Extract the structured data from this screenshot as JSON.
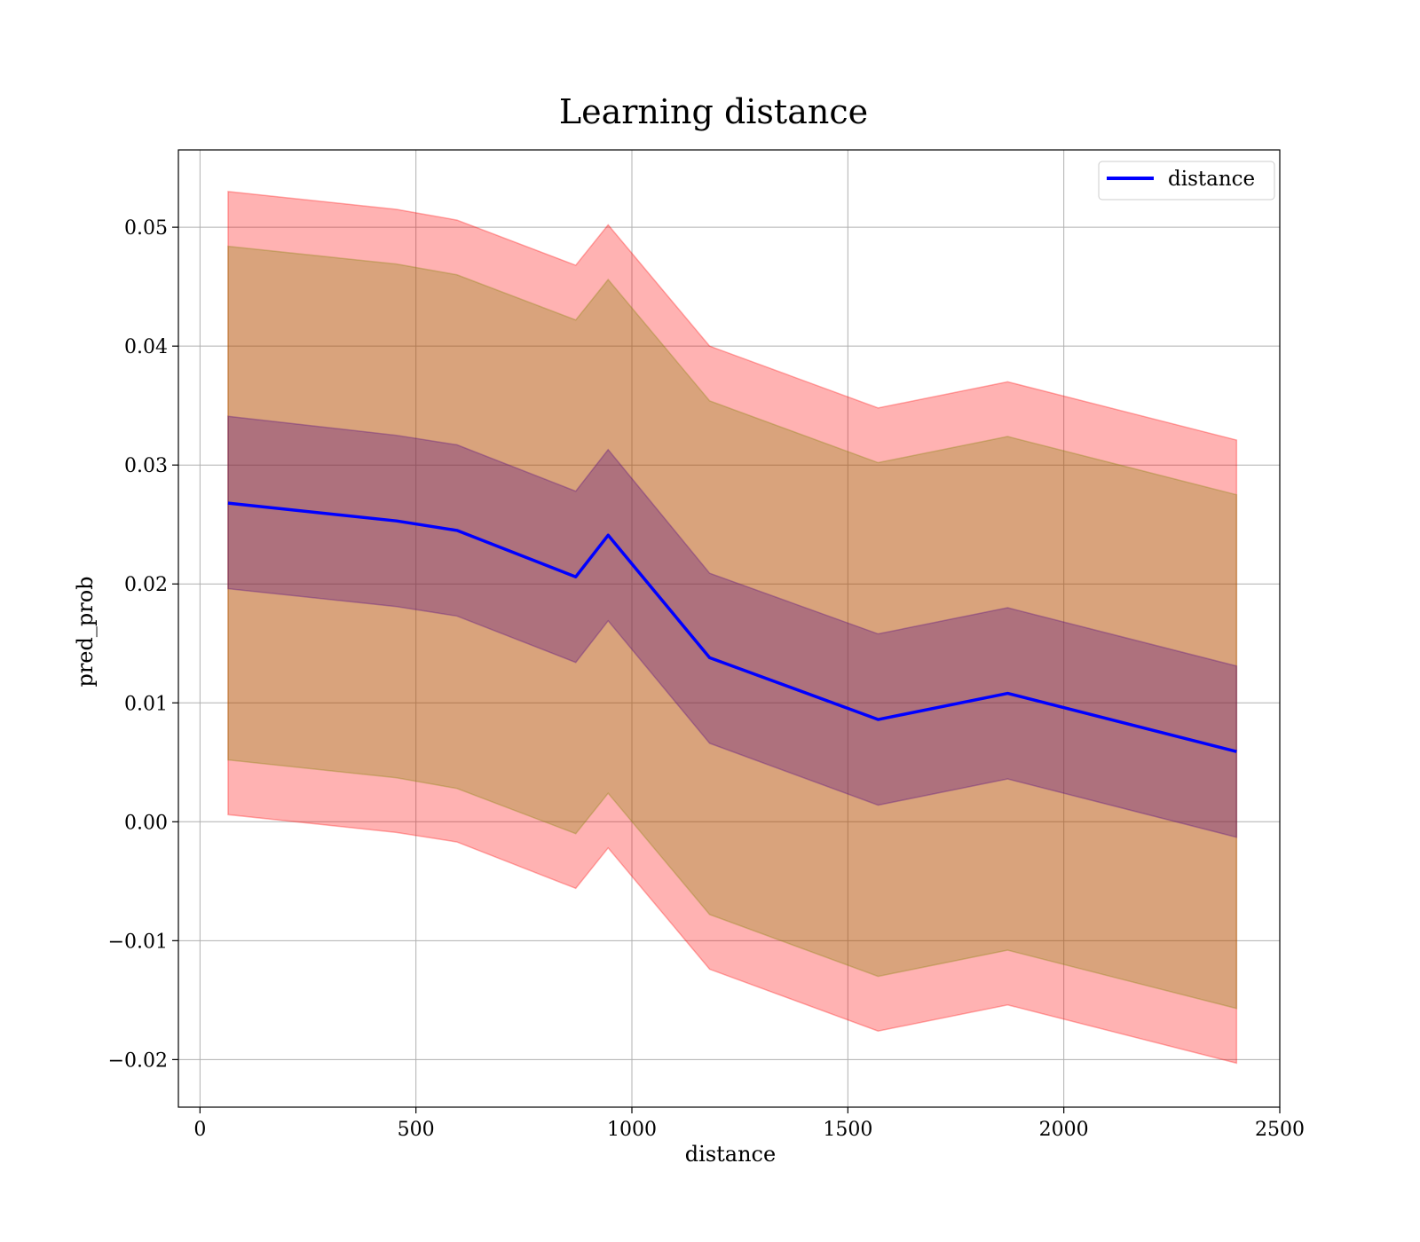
{
  "chart_data": {
    "type": "line",
    "title": "Learning distance",
    "xlabel": "distance",
    "ylabel": "pred_prob",
    "xlim": [
      -50,
      2500
    ],
    "ylim": [
      -0.024,
      0.0565
    ],
    "x_ticks": [
      0,
      500,
      1000,
      1500,
      2000,
      2500
    ],
    "y_ticks": [
      -0.02,
      -0.01,
      0.0,
      0.01,
      0.02,
      0.03,
      0.04,
      0.05
    ],
    "x_tick_labels": [
      "0",
      "500",
      "1000",
      "1500",
      "2000",
      "2500"
    ],
    "y_tick_labels": [
      "−0.02",
      "−0.01",
      "0.00",
      "0.01",
      "0.02",
      "0.03",
      "0.04",
      "0.05"
    ],
    "grid": true,
    "legend_position": "top-right",
    "x": [
      65,
      455,
      595,
      870,
      945,
      1180,
      1570,
      1870,
      2400
    ],
    "series": [
      {
        "name": "distance",
        "color": "#0000ff",
        "values": [
          0.0268,
          0.0253,
          0.0245,
          0.0206,
          0.0241,
          0.0138,
          0.0086,
          0.0108,
          0.0059
        ]
      }
    ],
    "bands": [
      {
        "color": "#ff0000",
        "opacity": 0.3,
        "upper": [
          0.053,
          0.0515,
          0.0506,
          0.0468,
          0.0502,
          0.04,
          0.0348,
          0.037,
          0.0321
        ],
        "lower": [
          0.0006,
          -0.0009,
          -0.0017,
          -0.0056,
          -0.0022,
          -0.0124,
          -0.0176,
          -0.0154,
          -0.0203
        ]
      },
      {
        "color": "#808000",
        "opacity": 0.3,
        "upper": [
          0.0484,
          0.0469,
          0.046,
          0.0422,
          0.0456,
          0.0354,
          0.0302,
          0.0324,
          0.0275
        ],
        "lower": [
          0.0052,
          0.0037,
          0.0028,
          -0.001,
          0.0024,
          -0.0078,
          -0.013,
          -0.0108,
          -0.0157
        ]
      },
      {
        "color": "#4b0082",
        "opacity": 0.3,
        "upper": [
          0.0341,
          0.0325,
          0.0317,
          0.0278,
          0.0313,
          0.0209,
          0.0158,
          0.018,
          0.0131
        ],
        "lower": [
          0.0196,
          0.0181,
          0.0173,
          0.0134,
          0.0169,
          0.0066,
          0.0014,
          0.0036,
          -0.0013
        ]
      }
    ]
  }
}
